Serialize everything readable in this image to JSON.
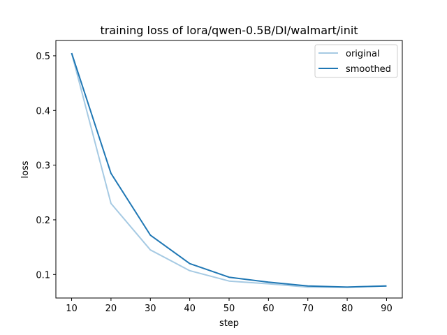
{
  "chart_data": {
    "type": "line",
    "title": "training loss of lora/qwen-0.5B/DI/walmart/init",
    "xlabel": "step",
    "ylabel": "loss",
    "x": [
      10,
      20,
      30,
      40,
      50,
      60,
      70,
      80,
      90
    ],
    "xlim": [
      6,
      94
    ],
    "ylim": [
      0.057,
      0.528
    ],
    "xticks": [
      10,
      20,
      30,
      40,
      50,
      60,
      70,
      80,
      90
    ],
    "xtick_labels": [
      "10",
      "20",
      "30",
      "40",
      "50",
      "60",
      "70",
      "80",
      "90"
    ],
    "yticks": [
      0.1,
      0.2,
      0.3,
      0.4,
      0.5
    ],
    "ytick_labels": [
      "0.1",
      "0.2",
      "0.3",
      "0.4",
      "0.5"
    ],
    "grid": false,
    "legend_position": "top-right",
    "series": [
      {
        "name": "original",
        "color": "#a6cae3",
        "values": [
          0.505,
          0.23,
          0.145,
          0.107,
          0.088,
          0.083,
          0.077,
          0.077,
          0.079
        ]
      },
      {
        "name": "smoothed",
        "color": "#1f77b4",
        "values": [
          0.505,
          0.285,
          0.172,
          0.12,
          0.095,
          0.086,
          0.079,
          0.077,
          0.079
        ]
      }
    ]
  }
}
